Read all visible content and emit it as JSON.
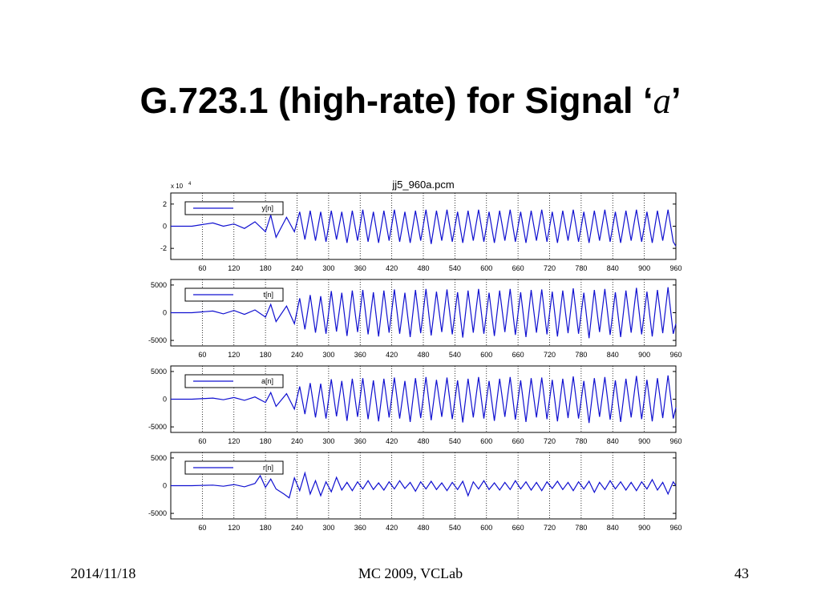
{
  "slide": {
    "title_main": "G.723.1 (high-rate) for Signal ‘",
    "title_symbol": "a",
    "title_end": "’"
  },
  "footer": {
    "date": "2014/11/18",
    "center": "MC 2009, VCLab",
    "page": "43"
  },
  "chart_data": {
    "type": "line",
    "title": "jj5_960a.pcm",
    "x_ticks": [
      60,
      120,
      180,
      240,
      300,
      360,
      420,
      480,
      540,
      600,
      660,
      720,
      780,
      840,
      900,
      960
    ],
    "xlim": [
      0,
      960
    ],
    "grid": "vertical-dotted",
    "legend_placement": "top-left",
    "line_color": "#1010d0",
    "panels": [
      {
        "name": "y[n]",
        "scale_label": "x 10",
        "scale_exponent": "4",
        "ylim": [
          -3,
          3
        ],
        "y_ticks": [
          2,
          0,
          -2
        ],
        "y_tick_labels": [
          "2",
          "0",
          "-2"
        ],
        "x": [
          0,
          40,
          80,
          100,
          120,
          140,
          160,
          180,
          190,
          200,
          220,
          235,
          245,
          255,
          265,
          275,
          285,
          295,
          305,
          315,
          325,
          335,
          345,
          355,
          365,
          375,
          385,
          395,
          405,
          415,
          425,
          435,
          445,
          455,
          465,
          475,
          485,
          495,
          505,
          515,
          525,
          535,
          545,
          555,
          565,
          575,
          585,
          595,
          605,
          615,
          625,
          635,
          645,
          655,
          665,
          675,
          685,
          695,
          705,
          715,
          725,
          735,
          745,
          755,
          765,
          775,
          785,
          795,
          805,
          815,
          825,
          835,
          845,
          855,
          865,
          875,
          885,
          895,
          905,
          915,
          925,
          935,
          945,
          955,
          960
        ],
        "y": [
          0,
          0,
          0.3,
          0,
          0.2,
          -0.2,
          0.4,
          -0.5,
          1.0,
          -1.0,
          0.8,
          -0.5,
          1.3,
          -1.2,
          1.4,
          -1.3,
          1.3,
          -1.4,
          1.4,
          -1.2,
          1.3,
          -1.5,
          1.4,
          -1.3,
          1.5,
          -1.4,
          1.3,
          -1.5,
          1.4,
          -1.3,
          1.5,
          -1.4,
          1.3,
          -1.5,
          1.4,
          -1.3,
          1.5,
          -1.6,
          1.4,
          -1.3,
          1.5,
          -1.4,
          1.3,
          -1.5,
          1.4,
          -1.3,
          1.5,
          -1.4,
          1.3,
          -1.5,
          1.4,
          -1.3,
          1.5,
          -1.4,
          1.3,
          -1.5,
          1.4,
          -1.3,
          1.5,
          -1.4,
          1.3,
          -1.5,
          1.4,
          -1.3,
          1.5,
          -1.4,
          1.3,
          -1.5,
          1.4,
          -1.3,
          1.5,
          -1.4,
          1.3,
          -1.5,
          1.4,
          -1.3,
          1.5,
          -1.4,
          1.3,
          -1.5,
          1.4,
          -1.3,
          1.5,
          -1.4,
          -1.8
        ]
      },
      {
        "name": "t[n]",
        "ylim": [
          -6000,
          6000
        ],
        "y_ticks": [
          5000,
          0,
          -5000
        ],
        "y_tick_labels": [
          "5000",
          "0",
          "-5000"
        ],
        "x": [
          0,
          40,
          80,
          100,
          120,
          140,
          160,
          180,
          190,
          200,
          220,
          235,
          245,
          255,
          265,
          275,
          285,
          295,
          305,
          315,
          325,
          335,
          345,
          355,
          365,
          375,
          385,
          395,
          405,
          415,
          425,
          435,
          445,
          455,
          465,
          475,
          485,
          495,
          505,
          515,
          525,
          535,
          545,
          555,
          565,
          575,
          585,
          595,
          605,
          615,
          625,
          635,
          645,
          655,
          665,
          675,
          685,
          695,
          705,
          715,
          725,
          735,
          745,
          755,
          765,
          775,
          785,
          795,
          805,
          815,
          825,
          835,
          845,
          855,
          865,
          875,
          885,
          895,
          905,
          915,
          925,
          935,
          945,
          955,
          960
        ],
        "y": [
          0,
          0,
          300,
          -200,
          400,
          -300,
          500,
          -800,
          1500,
          -1600,
          1200,
          -2000,
          2600,
          -3000,
          3200,
          -3600,
          3000,
          -3800,
          3900,
          -3400,
          3600,
          -4200,
          4000,
          -3500,
          4100,
          -3900,
          3700,
          -4300,
          4000,
          -3600,
          4200,
          -3800,
          3600,
          -4400,
          4100,
          -3700,
          4300,
          -4100,
          3800,
          -3500,
          4200,
          -3900,
          3700,
          -4500,
          4000,
          -3600,
          4300,
          -3800,
          3600,
          -4200,
          4000,
          -3500,
          4300,
          -4000,
          3700,
          -4400,
          4100,
          -3600,
          4200,
          -3900,
          3800,
          -4300,
          4000,
          -3700,
          4400,
          -3800,
          3600,
          -4600,
          4100,
          -3500,
          4300,
          -4000,
          3700,
          -4400,
          4000,
          -3600,
          4500,
          -3900,
          3800,
          -4300,
          4100,
          -3700,
          4600,
          -3800,
          -2000
        ]
      },
      {
        "name": "a[n]",
        "ylim": [
          -6000,
          6000
        ],
        "y_ticks": [
          5000,
          0,
          -5000
        ],
        "y_tick_labels": [
          "5000",
          "0",
          "-5000"
        ],
        "x": [
          0,
          40,
          80,
          100,
          120,
          140,
          160,
          180,
          190,
          200,
          220,
          235,
          245,
          255,
          265,
          275,
          285,
          295,
          305,
          315,
          325,
          335,
          345,
          355,
          365,
          375,
          385,
          395,
          405,
          415,
          425,
          435,
          445,
          455,
          465,
          475,
          485,
          495,
          505,
          515,
          525,
          535,
          545,
          555,
          565,
          575,
          585,
          595,
          605,
          615,
          625,
          635,
          645,
          655,
          665,
          675,
          685,
          695,
          705,
          715,
          725,
          735,
          745,
          755,
          765,
          775,
          785,
          795,
          805,
          815,
          825,
          835,
          845,
          855,
          865,
          875,
          885,
          895,
          905,
          915,
          925,
          935,
          945,
          955,
          960
        ],
        "y": [
          0,
          0,
          200,
          -100,
          300,
          -200,
          400,
          -600,
          1200,
          -1300,
          1000,
          -1800,
          2300,
          -2700,
          2900,
          -3300,
          2800,
          -3500,
          3600,
          -3100,
          3300,
          -3900,
          3700,
          -3200,
          3800,
          -3600,
          3400,
          -4000,
          3700,
          -3300,
          3900,
          -3500,
          3300,
          -4100,
          3800,
          -3400,
          4000,
          -3800,
          3500,
          -3200,
          3900,
          -3600,
          3400,
          -4200,
          3700,
          -3300,
          4000,
          -3500,
          3300,
          -3900,
          3700,
          -3200,
          4000,
          -3700,
          3400,
          -4100,
          3800,
          -3300,
          3900,
          -3600,
          3500,
          -4000,
          3700,
          -3400,
          4100,
          -3500,
          3300,
          -4300,
          3800,
          -3200,
          4000,
          -3700,
          3400,
          -4100,
          3700,
          -3300,
          4200,
          -3600,
          3500,
          -4000,
          3800,
          -3400,
          4300,
          -3500,
          -1500
        ]
      },
      {
        "name": "r[n]",
        "ylim": [
          -6000,
          6000
        ],
        "y_ticks": [
          5000,
          0,
          -5000
        ],
        "y_tick_labels": [
          "5000",
          "0",
          "-5000"
        ],
        "x": [
          0,
          40,
          80,
          100,
          120,
          140,
          160,
          170,
          180,
          190,
          200,
          215,
          225,
          235,
          245,
          255,
          265,
          275,
          285,
          295,
          305,
          315,
          325,
          335,
          345,
          355,
          365,
          375,
          385,
          395,
          405,
          415,
          425,
          435,
          445,
          455,
          465,
          475,
          485,
          495,
          505,
          515,
          525,
          535,
          545,
          555,
          565,
          575,
          585,
          595,
          605,
          615,
          625,
          635,
          645,
          655,
          665,
          675,
          685,
          695,
          705,
          715,
          725,
          735,
          745,
          755,
          765,
          775,
          785,
          795,
          805,
          815,
          825,
          835,
          845,
          855,
          865,
          875,
          885,
          895,
          905,
          915,
          925,
          935,
          945,
          955,
          960
        ],
        "y": [
          0,
          0,
          100,
          -100,
          200,
          -200,
          400,
          1800,
          -300,
          1200,
          -600,
          -1500,
          -2200,
          1400,
          -900,
          2300,
          -1500,
          900,
          -1800,
          700,
          -1100,
          1500,
          -800,
          600,
          -900,
          700,
          -600,
          900,
          -700,
          500,
          -800,
          700,
          -600,
          900,
          -500,
          600,
          -1000,
          700,
          -600,
          800,
          -700,
          500,
          -900,
          600,
          -700,
          800,
          -1800,
          700,
          -600,
          900,
          -700,
          500,
          -800,
          600,
          -700,
          900,
          -600,
          700,
          -800,
          600,
          -900,
          700,
          -500,
          800,
          -700,
          600,
          -900,
          700,
          -600,
          800,
          -1200,
          600,
          -700,
          900,
          -600,
          700,
          -800,
          600,
          -900,
          700,
          -600,
          1100,
          -800,
          600,
          -1500,
          700,
          0
        ]
      }
    ]
  }
}
